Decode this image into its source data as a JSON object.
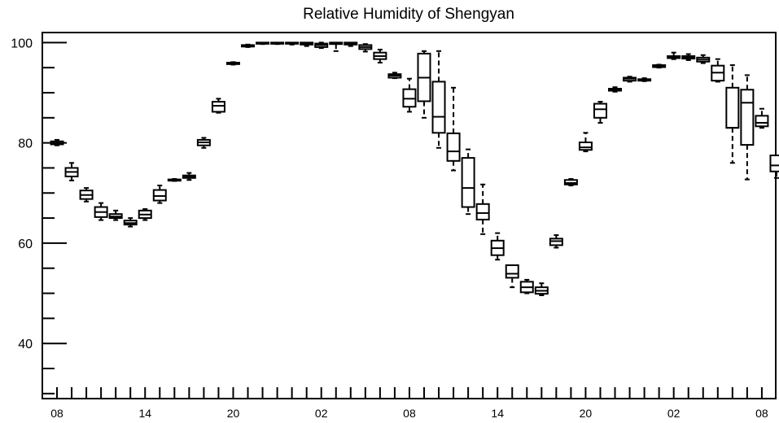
{
  "chart_data": {
    "type": "box",
    "title": "Relative Humidity of Shengyan",
    "xlabel": "",
    "ylabel": "",
    "ylim": [
      29,
      102
    ],
    "yticks": [
      40,
      60,
      80,
      100
    ],
    "x_tick_labels": [
      "08",
      "14",
      "20",
      "02",
      "08",
      "14",
      "20",
      "02",
      "08"
    ],
    "x_tick_label_hours": [
      0,
      6,
      12,
      18,
      24,
      30,
      36,
      42,
      48
    ],
    "grid": false,
    "boxes": [
      {
        "hour": 0,
        "min": 79.5,
        "q1": 79.7,
        "median": 80.0,
        "q3": 80.3,
        "max": 80.6
      },
      {
        "hour": 1,
        "min": 72.5,
        "q1": 73.3,
        "median": 74.2,
        "q3": 75.0,
        "max": 76.0
      },
      {
        "hour": 2,
        "min": 68.3,
        "q1": 68.8,
        "median": 69.6,
        "q3": 70.5,
        "max": 71.0
      },
      {
        "hour": 3,
        "min": 64.6,
        "q1": 65.2,
        "median": 66.2,
        "q3": 67.2,
        "max": 68.0
      },
      {
        "hour": 4,
        "min": 64.6,
        "q1": 65.0,
        "median": 65.3,
        "q3": 65.8,
        "max": 66.5
      },
      {
        "hour": 5,
        "min": 63.3,
        "q1": 63.7,
        "median": 64.0,
        "q3": 64.5,
        "max": 65.0
      },
      {
        "hour": 6,
        "min": 64.6,
        "q1": 65.0,
        "median": 65.7,
        "q3": 66.5,
        "max": 66.8
      },
      {
        "hour": 7,
        "min": 68.0,
        "q1": 68.5,
        "median": 69.4,
        "q3": 70.6,
        "max": 71.5
      },
      {
        "hour": 8,
        "min": 72.4,
        "q1": 72.5,
        "median": 72.6,
        "q3": 72.7,
        "max": 72.8
      },
      {
        "hour": 9,
        "min": 72.6,
        "q1": 73.0,
        "median": 73.3,
        "q3": 73.5,
        "max": 74.0
      },
      {
        "hour": 10,
        "min": 79.0,
        "q1": 79.5,
        "median": 80.1,
        "q3": 80.6,
        "max": 81.0
      },
      {
        "hour": 11,
        "min": 86.0,
        "q1": 86.2,
        "median": 87.4,
        "q3": 88.2,
        "max": 88.8
      },
      {
        "hour": 12,
        "min": 95.6,
        "q1": 95.7,
        "median": 95.9,
        "q3": 96.0,
        "max": 96.1
      },
      {
        "hour": 13,
        "min": 99.1,
        "q1": 99.2,
        "median": 99.3,
        "q3": 99.5,
        "max": 99.6
      },
      {
        "hour": 14,
        "min": 99.7,
        "q1": 99.8,
        "median": 99.9,
        "q3": 100.0,
        "max": 100.0
      },
      {
        "hour": 15,
        "min": 99.7,
        "q1": 99.8,
        "median": 99.9,
        "q3": 100.0,
        "max": 100.0
      },
      {
        "hour": 16,
        "min": 99.6,
        "q1": 99.8,
        "median": 99.9,
        "q3": 100.0,
        "max": 100.0
      },
      {
        "hour": 17,
        "min": 99.3,
        "q1": 99.6,
        "median": 99.8,
        "q3": 100.0,
        "max": 100.0
      },
      {
        "hour": 18,
        "min": 98.9,
        "q1": 99.1,
        "median": 99.5,
        "q3": 99.8,
        "max": 100.0
      },
      {
        "hour": 19,
        "min": 98.3,
        "q1": 99.7,
        "median": 99.9,
        "q3": 100.0,
        "max": 100.0
      },
      {
        "hour": 20,
        "min": 99.3,
        "q1": 99.6,
        "median": 99.9,
        "q3": 100.0,
        "max": 100.0
      },
      {
        "hour": 21,
        "min": 98.2,
        "q1": 98.7,
        "median": 99.1,
        "q3": 99.5,
        "max": 99.7
      },
      {
        "hour": 22,
        "min": 96.0,
        "q1": 96.7,
        "median": 97.3,
        "q3": 98.0,
        "max": 98.6
      },
      {
        "hour": 23,
        "min": 92.9,
        "q1": 93.0,
        "median": 93.4,
        "q3": 93.7,
        "max": 94.0
      },
      {
        "hour": 24,
        "min": 86.2,
        "q1": 87.2,
        "median": 88.8,
        "q3": 90.7,
        "max": 92.8
      },
      {
        "hour": 25,
        "min": 85.0,
        "q1": 88.3,
        "median": 93.0,
        "q3": 97.8,
        "max": 98.3
      },
      {
        "hour": 26,
        "min": 79.0,
        "q1": 82.0,
        "median": 85.2,
        "q3": 92.2,
        "max": 98.3
      },
      {
        "hour": 27,
        "min": 74.5,
        "q1": 76.4,
        "median": 78.3,
        "q3": 81.9,
        "max": 91.0
      },
      {
        "hour": 28,
        "min": 65.8,
        "q1": 67.2,
        "median": 71.0,
        "q3": 77.0,
        "max": 78.7
      },
      {
        "hour": 29,
        "min": 61.8,
        "q1": 64.7,
        "median": 66.0,
        "q3": 67.8,
        "max": 71.7
      },
      {
        "hour": 30,
        "min": 56.7,
        "q1": 57.6,
        "median": 59.0,
        "q3": 60.5,
        "max": 62.0
      },
      {
        "hour": 31,
        "min": 51.2,
        "q1": 53.1,
        "median": 53.9,
        "q3": 55.6,
        "max": 55.6
      },
      {
        "hour": 32,
        "min": 50.0,
        "q1": 50.2,
        "median": 51.2,
        "q3": 52.3,
        "max": 52.7
      },
      {
        "hour": 33,
        "min": 49.6,
        "q1": 49.9,
        "median": 50.5,
        "q3": 51.2,
        "max": 52.0
      },
      {
        "hour": 34,
        "min": 59.1,
        "q1": 59.6,
        "median": 60.4,
        "q3": 60.9,
        "max": 61.6
      },
      {
        "hour": 35,
        "min": 71.5,
        "q1": 71.7,
        "median": 72.0,
        "q3": 72.6,
        "max": 72.8
      },
      {
        "hour": 36,
        "min": 78.3,
        "q1": 78.6,
        "median": 79.1,
        "q3": 80.1,
        "max": 82.0
      },
      {
        "hour": 37,
        "min": 84.0,
        "q1": 85.0,
        "median": 86.7,
        "q3": 87.8,
        "max": 88.2
      },
      {
        "hour": 38,
        "min": 90.2,
        "q1": 90.4,
        "median": 90.6,
        "q3": 90.8,
        "max": 91.1
      },
      {
        "hour": 39,
        "min": 92.2,
        "q1": 92.4,
        "median": 92.8,
        "q3": 93.0,
        "max": 93.2
      },
      {
        "hour": 40,
        "min": 92.3,
        "q1": 92.4,
        "median": 92.6,
        "q3": 92.7,
        "max": 92.9
      },
      {
        "hour": 41,
        "min": 95.0,
        "q1": 95.1,
        "median": 95.3,
        "q3": 95.5,
        "max": 95.6
      },
      {
        "hour": 42,
        "min": 96.7,
        "q1": 96.9,
        "median": 97.1,
        "q3": 97.3,
        "max": 98.0
      },
      {
        "hour": 43,
        "min": 96.5,
        "q1": 96.8,
        "median": 97.1,
        "q3": 97.3,
        "max": 97.7
      },
      {
        "hour": 44,
        "min": 95.9,
        "q1": 96.2,
        "median": 96.6,
        "q3": 97.0,
        "max": 97.5
      },
      {
        "hour": 45,
        "min": 92.2,
        "q1": 92.4,
        "median": 94.0,
        "q3": 95.4,
        "max": 96.7
      },
      {
        "hour": 46,
        "min": 76.0,
        "q1": 83.0,
        "median": 83.0,
        "q3": 91.0,
        "max": 95.5
      },
      {
        "hour": 47,
        "min": 72.7,
        "q1": 79.6,
        "median": 88.0,
        "q3": 90.6,
        "max": 93.5
      },
      {
        "hour": 48,
        "min": 83.0,
        "q1": 83.3,
        "median": 84.0,
        "q3": 85.4,
        "max": 86.8
      },
      {
        "hour": 49,
        "min": 73.0,
        "q1": 74.3,
        "median": 75.5,
        "q3": 77.5,
        "max": 77.5
      }
    ]
  }
}
